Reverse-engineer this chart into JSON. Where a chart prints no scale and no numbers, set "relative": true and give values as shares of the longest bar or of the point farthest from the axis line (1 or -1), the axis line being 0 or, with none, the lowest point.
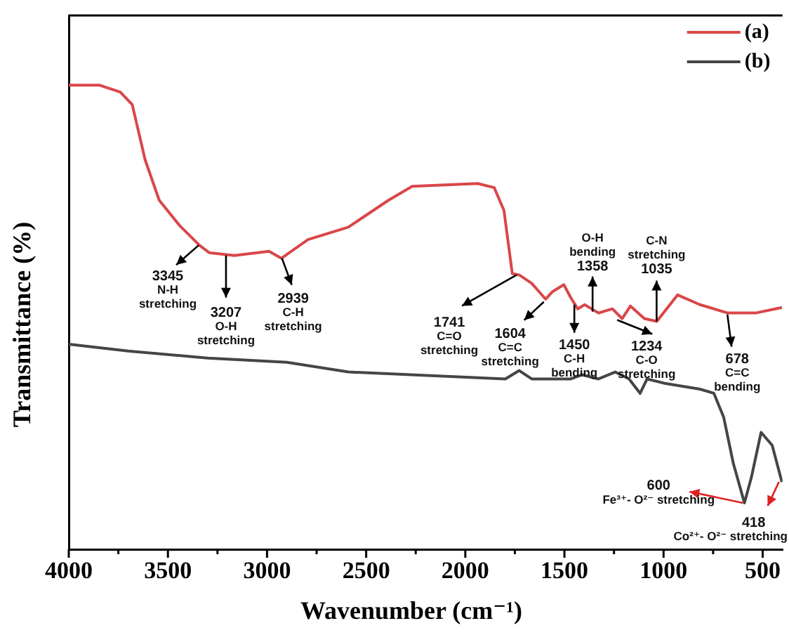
{
  "chart_data": {
    "type": "line",
    "xlabel": "Wavenumber (cm⁻¹)",
    "ylabel": "Transmittance (%)",
    "relative": true,
    "xlim": [
      4000,
      400
    ],
    "xticks": [
      4000,
      {
        "value": 3750,
        "label": null
      },
      3500,
      {
        "value": 3250,
        "label": null
      },
      3000,
      {
        "value": 2750,
        "label": null
      },
      2500,
      {
        "value": 2250,
        "label": null
      },
      2000,
      {
        "value": 1750,
        "label": null
      },
      1500,
      {
        "value": 1250,
        "label": null
      },
      1000,
      {
        "value": 750,
        "label": null
      },
      500
    ],
    "legend": "top right",
    "grid": false,
    "marker": "none",
    "line_style": "solid",
    "series": [
      {
        "name": "(a)",
        "color": "#d9474a",
        "x": [
          4000,
          3846,
          3740,
          3680,
          3615,
          3544,
          3440,
          3341,
          3292,
          3165,
          2990,
          2927,
          2794,
          2590,
          2387,
          2268,
          1938,
          1854,
          1805,
          1763,
          1728,
          1665,
          1595,
          1560,
          1503,
          1468,
          1433,
          1398,
          1328,
          1258,
          1209,
          1167,
          1097,
          1034,
          929,
          816,
          676,
          536,
          403
        ],
        "values": [
          1.0,
          1.0,
          0.985,
          0.958,
          0.839,
          0.752,
          0.697,
          0.655,
          0.639,
          0.633,
          0.642,
          0.627,
          0.667,
          0.694,
          0.752,
          0.782,
          0.788,
          0.779,
          0.73,
          0.594,
          0.591,
          0.573,
          0.539,
          0.555,
          0.57,
          0.542,
          0.518,
          0.527,
          0.509,
          0.518,
          0.497,
          0.524,
          0.497,
          0.491,
          0.548,
          0.527,
          0.509,
          0.509,
          0.521
        ]
      },
      {
        "name": "(b)",
        "color": "#454545",
        "x": [
          4000,
          3700,
          3300,
          2900,
          2590,
          1798,
          1728,
          1665,
          1468,
          1412,
          1328,
          1244,
          1174,
          1118,
          1083,
          999,
          816,
          746,
          697,
          648,
          592,
          557,
          508,
          452,
          403
        ],
        "values": [
          0.442,
          0.427,
          0.412,
          0.403,
          0.382,
          0.367,
          0.385,
          0.367,
          0.367,
          0.376,
          0.367,
          0.382,
          0.367,
          0.336,
          0.367,
          0.358,
          0.345,
          0.336,
          0.285,
          0.185,
          0.1,
          0.155,
          0.252,
          0.224,
          0.145
        ]
      }
    ],
    "annotations": [
      {
        "text": "3345\nN-H\nstretching",
        "x": 3345,
        "y": 0.655
      },
      {
        "text": "3207\nO-H\nstretching",
        "x": 3207,
        "y": 0.633
      },
      {
        "text": "2939\nC-H\nstretching",
        "x": 2939,
        "y": 0.627
      },
      {
        "text": "1741\nC=O\nstretching",
        "x": 1741,
        "y": 0.591
      },
      {
        "text": "1604\nC=C\nstretching",
        "x": 1604,
        "y": 0.539
      },
      {
        "text": "1450\nC-H\nbending",
        "x": 1450,
        "y": 0.527
      },
      {
        "text": "O-H\nbending\n1358",
        "x": 1358,
        "y": 0.512
      },
      {
        "text": "1234\nC-O\nstretching",
        "x": 1234,
        "y": 0.497
      },
      {
        "text": "C-N\nstretching\n1035",
        "x": 1035,
        "y": 0.491
      },
      {
        "text": "678\nC=C\nbending",
        "x": 678,
        "y": 0.509
      },
      {
        "text": "600\nFe³⁺- O²⁻ stretching",
        "x": 600,
        "y": 0.1
      },
      {
        "text": "418\nCo²⁺- O²⁻ stretching",
        "x": 418,
        "y": 0.145
      }
    ]
  }
}
